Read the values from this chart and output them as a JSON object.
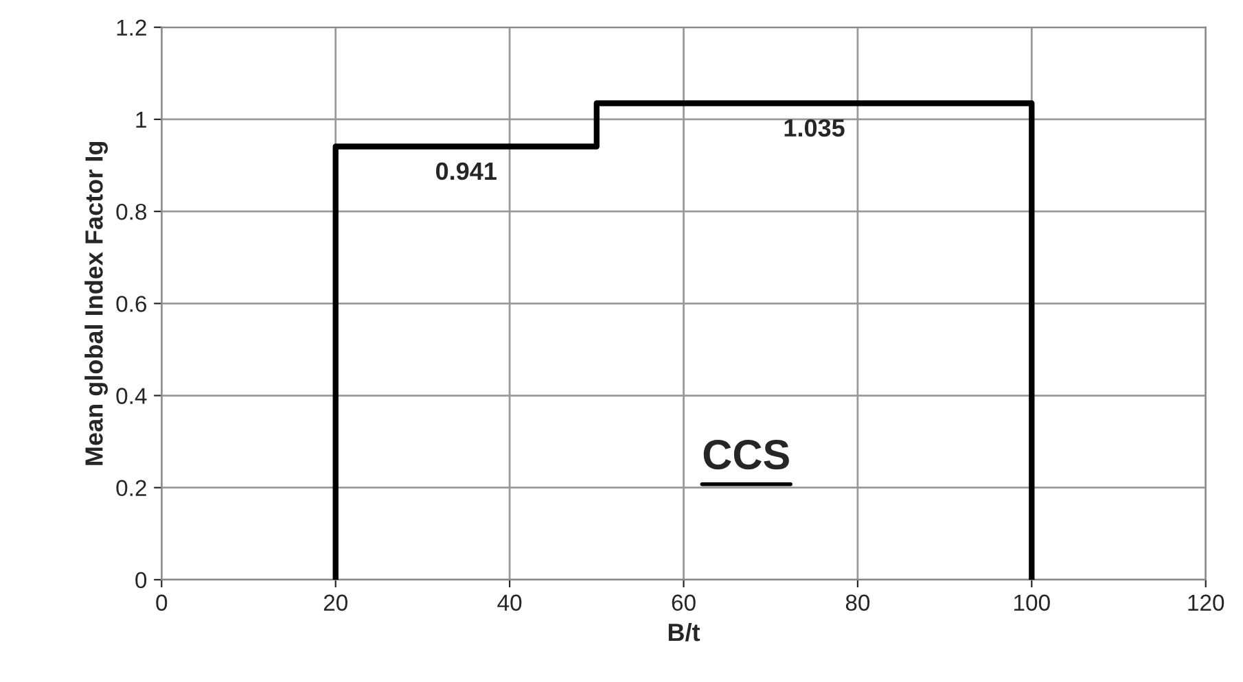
{
  "chart_data": {
    "type": "line",
    "xlabel": "B/t",
    "ylabel": "Mean global Index Factor Ig",
    "x": [
      20,
      20,
      50,
      50,
      100,
      100
    ],
    "series": [
      {
        "color": "#000000",
        "values": [
          0,
          0.941,
          0.941,
          1.035,
          1.035,
          0
        ]
      }
    ],
    "xlim": [
      0,
      120
    ],
    "xticks": [
      0,
      20,
      40,
      60,
      80,
      100,
      120
    ],
    "ylim": [
      0,
      1.2
    ],
    "yticks": [
      0,
      {
        "value": 0.2,
        "label": "0.2"
      },
      {
        "value": 0.4,
        "label": "0.4"
      },
      {
        "value": 0.6,
        "label": "0.6"
      },
      {
        "value": 0.8,
        "label": "0.8"
      },
      1,
      {
        "value": 1.2,
        "label": "1.2"
      }
    ],
    "grid": true,
    "marker": "none",
    "line_style": "solid",
    "annotations": [
      {
        "text": "0.941",
        "x": 35,
        "y": 0.941
      },
      {
        "text": "1.035",
        "x": 75,
        "y": 1.035
      },
      "CCS"
    ]
  }
}
